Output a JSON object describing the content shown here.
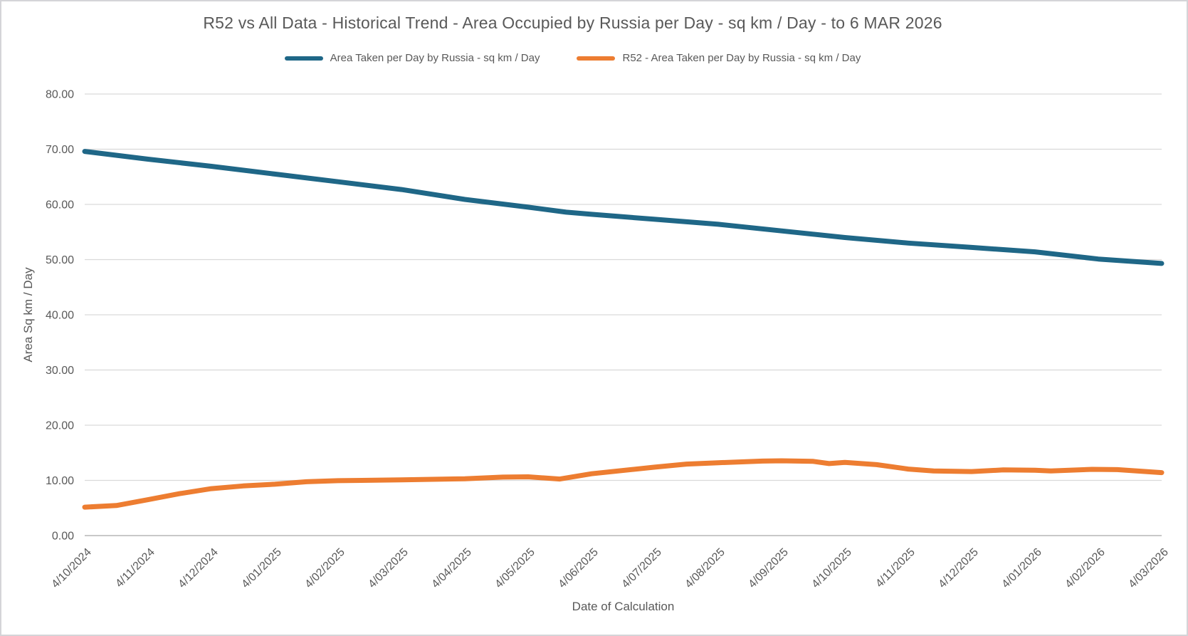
{
  "chart_data": {
    "type": "line",
    "title": "R52 vs All Data - Historical Trend - Area Occupied by Russia per Day - sq km / Day - to 6 MAR 2026",
    "xlabel": "Date of Calculation",
    "ylabel": "Area Sq km / Day",
    "ylim": [
      0,
      80
    ],
    "ytick_step": 10,
    "grid": true,
    "legend_position": "top",
    "x_tick_rotation": -45,
    "categories": [
      "4/10/2024",
      "4/11/2024",
      "4/12/2024",
      "4/01/2025",
      "4/02/2025",
      "4/03/2025",
      "4/04/2025",
      "4/05/2025",
      "4/06/2025",
      "4/07/2025",
      "4/08/2025",
      "4/09/2025",
      "4/10/2025",
      "4/11/2025",
      "4/12/2025",
      "4/01/2026",
      "4/02/2026",
      "4/03/2026"
    ],
    "series": [
      {
        "name": "Area Taken per Day by Russia - sq km / Day",
        "color": "#1f6787",
        "values": [
          69.6,
          68.2,
          66.9,
          65.5,
          64.1,
          62.7,
          60.9,
          59.5,
          58.2,
          57.3,
          56.4,
          55.2,
          54.0,
          53.0,
          52.2,
          51.4,
          50.1,
          49.3
        ],
        "path": [
          [
            0,
            69.6
          ],
          [
            1,
            68.2
          ],
          [
            2,
            66.9
          ],
          [
            3,
            65.5
          ],
          [
            4,
            64.1
          ],
          [
            5,
            62.7
          ],
          [
            6,
            60.9
          ],
          [
            7,
            59.5
          ],
          [
            7.6,
            58.6
          ],
          [
            8,
            58.2
          ],
          [
            9,
            57.3
          ],
          [
            10,
            56.4
          ],
          [
            11,
            55.2
          ],
          [
            12,
            54.0
          ],
          [
            13,
            53.0
          ],
          [
            14,
            52.2
          ],
          [
            15,
            51.4
          ],
          [
            16,
            50.1
          ],
          [
            17,
            49.3
          ]
        ]
      },
      {
        "name": "R52 - Area Taken per Day by Russia - sq km / Day",
        "color": "#ed7d31",
        "values": [
          5.2,
          6.5,
          8.5,
          9.3,
          10.0,
          10.1,
          10.3,
          10.7,
          11.2,
          12.4,
          13.2,
          13.6,
          13.3,
          12.1,
          11.6,
          11.9,
          12.0,
          11.4
        ],
        "path": [
          [
            0,
            5.15
          ],
          [
            0.5,
            5.45
          ],
          [
            1,
            6.5
          ],
          [
            1.5,
            7.6
          ],
          [
            2,
            8.5
          ],
          [
            2.5,
            9.0
          ],
          [
            3,
            9.3
          ],
          [
            3.5,
            9.75
          ],
          [
            4,
            9.95
          ],
          [
            5,
            10.1
          ],
          [
            6,
            10.3
          ],
          [
            6.6,
            10.6
          ],
          [
            7,
            10.65
          ],
          [
            7.5,
            10.25
          ],
          [
            8,
            11.2
          ],
          [
            9,
            12.4
          ],
          [
            9.5,
            12.95
          ],
          [
            10,
            13.2
          ],
          [
            10.7,
            13.5
          ],
          [
            11,
            13.55
          ],
          [
            11.5,
            13.45
          ],
          [
            11.75,
            13.05
          ],
          [
            12,
            13.25
          ],
          [
            12.5,
            12.85
          ],
          [
            13,
            12.05
          ],
          [
            13.4,
            11.7
          ],
          [
            14,
            11.6
          ],
          [
            14.5,
            11.9
          ],
          [
            15,
            11.85
          ],
          [
            15.25,
            11.7
          ],
          [
            15.9,
            12.0
          ],
          [
            16.3,
            11.95
          ],
          [
            17,
            11.4
          ]
        ]
      }
    ]
  },
  "colors": {
    "text": "#595959",
    "gridline": "#d9d9d9",
    "axis_line": "#c8c8c8",
    "border": "#d4d4d8",
    "background": "#ffffff"
  }
}
